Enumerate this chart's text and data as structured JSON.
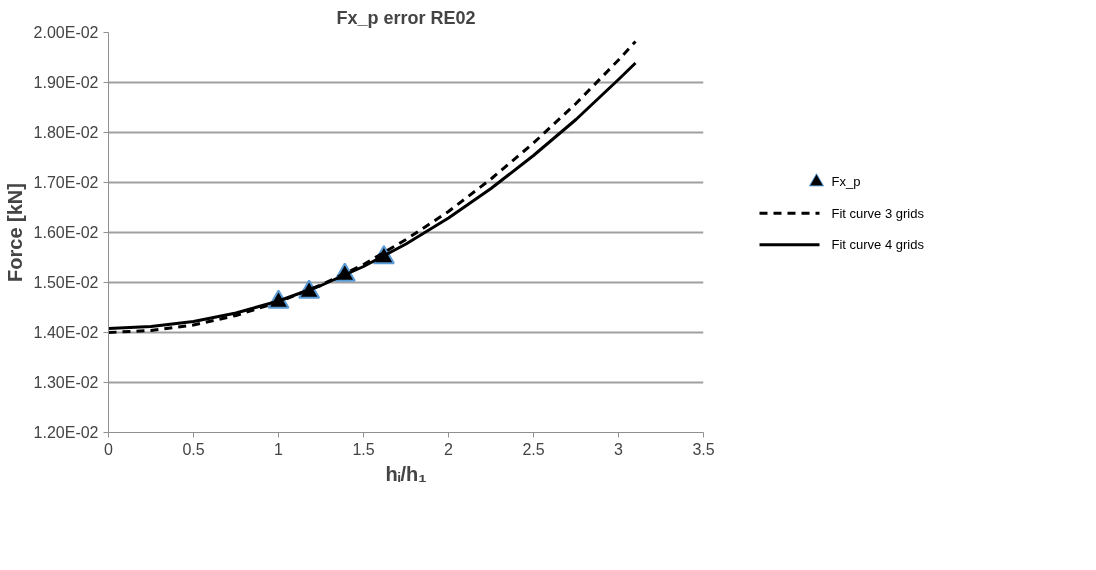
{
  "chart_data": {
    "type": "line",
    "title": "Fx_p error RE02",
    "xlabel": "hᵢ/h₁",
    "ylabel": "Force [kN]",
    "xlim": [
      0,
      3.5
    ],
    "xticks": [
      0,
      0.5,
      1,
      1.5,
      2,
      2.5,
      3,
      3.5
    ],
    "ylim": [
      0.012,
      0.02
    ],
    "yticks": [
      {
        "value": 0.012,
        "label": "1.20E-02"
      },
      {
        "value": 0.013,
        "label": "1.30E-02"
      },
      {
        "value": 0.014,
        "label": "1.40E-02"
      },
      {
        "value": 0.015,
        "label": "1.50E-02"
      },
      {
        "value": 0.016,
        "label": "1.60E-02"
      },
      {
        "value": 0.017,
        "label": "1.70E-02"
      },
      {
        "value": 0.018,
        "label": "1.80E-02"
      },
      {
        "value": 0.019,
        "label": "1.90E-02"
      },
      {
        "value": 0.02,
        "label": "2.00E-02"
      }
    ],
    "grid": "y",
    "legend": "right",
    "series": [
      {
        "name": "Fx_p",
        "type": "scatter",
        "marker": "triangle",
        "color": "#000000",
        "x": [
          1,
          1.18,
          1.39,
          1.62
        ],
        "values": [
          0.01461,
          0.01481,
          0.01515,
          0.0155
        ]
      },
      {
        "name": "Fit curve 3 grids",
        "line_style": "dashed",
        "marker": "none",
        "color": "#000000",
        "x": [
          0,
          0.25,
          0.5,
          0.75,
          1,
          1.25,
          1.5,
          1.75,
          2,
          2.25,
          2.5,
          2.75,
          3,
          3.1
        ],
        "values": [
          0.014,
          0.01404,
          0.01415,
          0.01434,
          0.01461,
          0.01495,
          0.01536,
          0.01586,
          0.01642,
          0.01707,
          0.01779,
          0.01858,
          0.01945,
          0.01982
        ]
      },
      {
        "name": "Fit curve 4 grids",
        "line_style": "solid",
        "marker": "none",
        "color": "#000000",
        "x": [
          0,
          0.25,
          0.5,
          0.75,
          1,
          1.25,
          1.5,
          1.75,
          2,
          2.25,
          2.5,
          2.75,
          3,
          3.1
        ],
        "values": [
          0.01408,
          0.01412,
          0.01422,
          0.01439,
          0.01463,
          0.01494,
          0.01532,
          0.01577,
          0.01629,
          0.01688,
          0.01754,
          0.01826,
          0.01906,
          0.01939
        ]
      }
    ]
  }
}
